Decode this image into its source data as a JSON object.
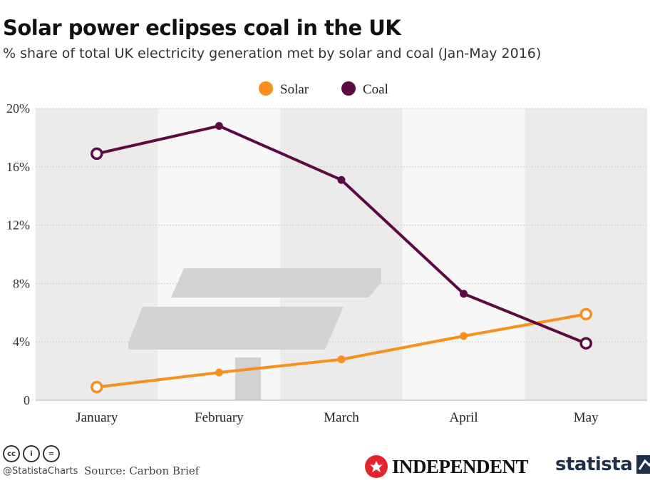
{
  "header": {
    "title": "Solar power eclipses coal in the UK",
    "subtitle": "% share of total UK electricity generation met by solar and coal (Jan-May 2016)"
  },
  "chart_data": {
    "type": "line",
    "categories": [
      "January",
      "February",
      "March",
      "April",
      "May"
    ],
    "series": [
      {
        "name": "Solar",
        "color": "#f7901e",
        "values": [
          0.9,
          1.9,
          2.8,
          4.4,
          5.9
        ]
      },
      {
        "name": "Coal",
        "color": "#5e0a42",
        "values": [
          16.9,
          18.8,
          15.1,
          7.3,
          3.9
        ]
      }
    ],
    "yticks": [
      0,
      4,
      8,
      12,
      16,
      20
    ],
    "ytick_labels": [
      "0",
      "4%",
      "8%",
      "12%",
      "16%",
      "20%"
    ],
    "ylim": [
      0,
      20
    ],
    "legend": "top-center",
    "grid": true
  },
  "footer": {
    "cc_icons": [
      "cc-icon",
      "by-icon",
      "nd-icon"
    ],
    "cc_labels": [
      "cc",
      "i",
      "="
    ],
    "handle": "@StatistaCharts",
    "source": "Source: Carbon Brief",
    "independent_logo": "INDEPENDENT",
    "statista_logo": "statista"
  }
}
